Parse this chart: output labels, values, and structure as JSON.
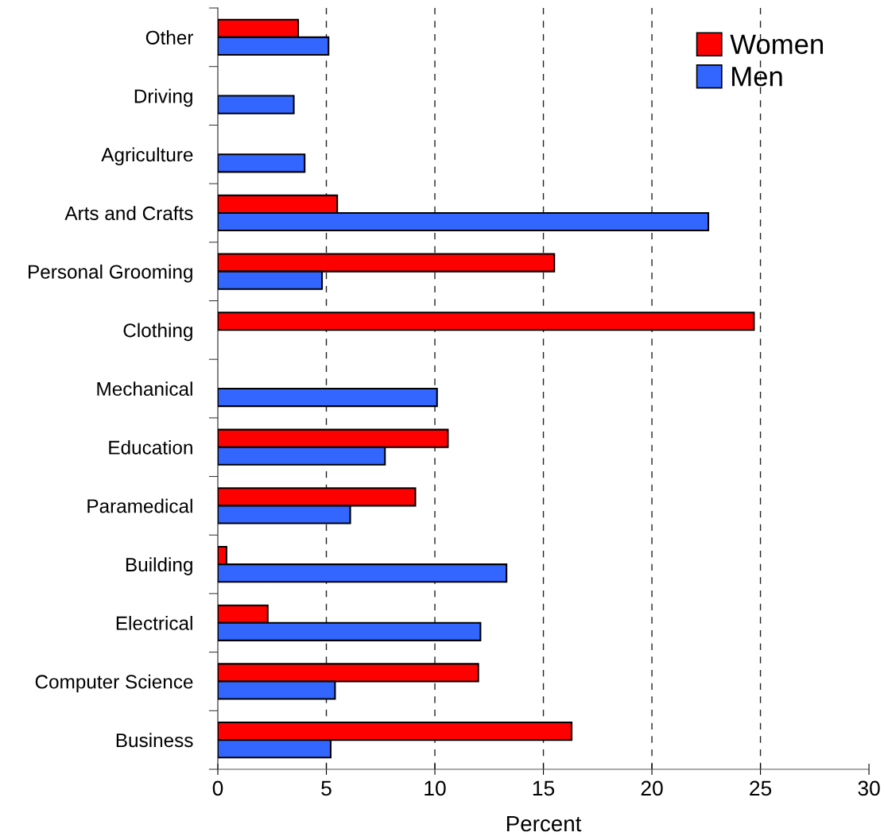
{
  "chart_data": {
    "type": "bar",
    "orientation": "horizontal",
    "categories": [
      "Other",
      "Driving",
      "Agriculture",
      "Arts and Crafts",
      "Personal Grooming",
      "Clothing",
      "Mechanical",
      "Education",
      "Paramedical",
      "Building",
      "Electrical",
      "Computer Science",
      "Business"
    ],
    "series": [
      {
        "name": "Women",
        "color": "#ff0000",
        "values": [
          3.7,
          null,
          null,
          5.5,
          15.5,
          24.7,
          null,
          10.6,
          9.1,
          0.4,
          2.3,
          12.0,
          16.3
        ]
      },
      {
        "name": "Men",
        "color": "#3366ff",
        "values": [
          5.1,
          3.5,
          4.0,
          22.6,
          4.8,
          null,
          10.1,
          7.7,
          6.1,
          13.3,
          12.1,
          5.4,
          5.2
        ]
      }
    ],
    "xlabel": "Percent",
    "xlim": [
      0,
      30
    ],
    "xticks": [
      0,
      5,
      10,
      15,
      20,
      25,
      30
    ],
    "grid": "x",
    "legend": "top right"
  }
}
